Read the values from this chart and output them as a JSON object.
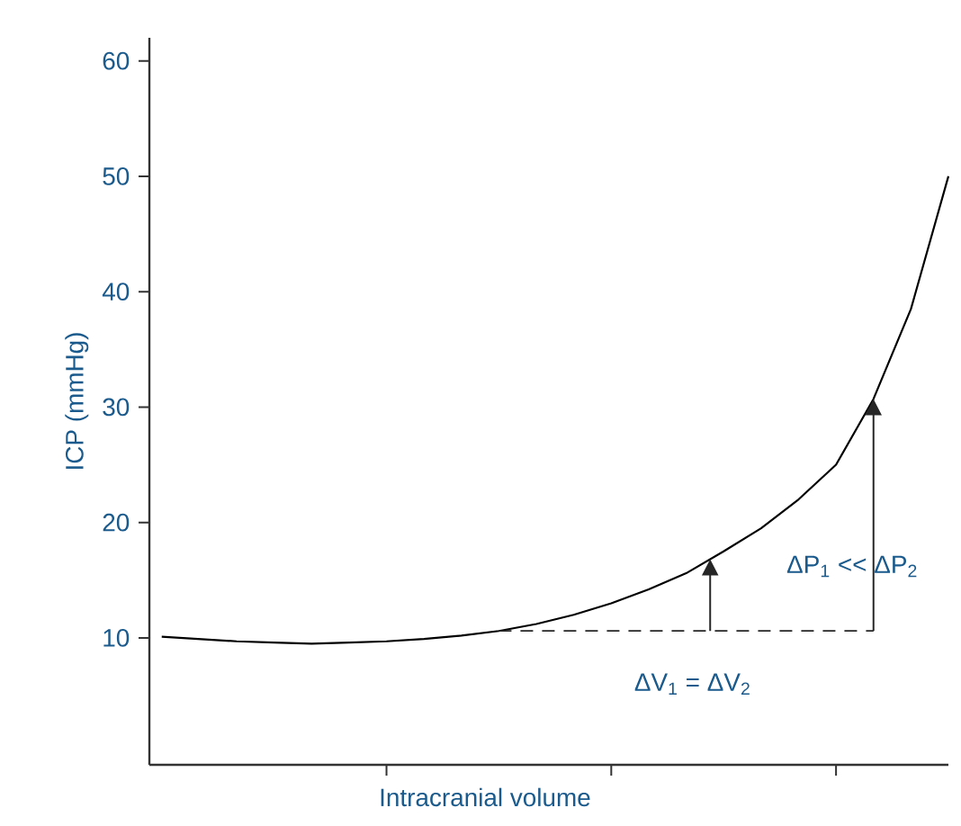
{
  "chart_data": {
    "type": "line",
    "xlabel": "Intracranial volume",
    "ylabel": "ICP (mmHg)",
    "categories": [
      null,
      null,
      null,
      null,
      null,
      null,
      null,
      null,
      null,
      null,
      null,
      null,
      null,
      null,
      null,
      null,
      null,
      null,
      null,
      null,
      null,
      null
    ],
    "series": [
      {
        "color": "#000000",
        "values": [
          10.1,
          9.9,
          9.7,
          9.6,
          9.5,
          9.6,
          9.7,
          9.9,
          10.2,
          10.6,
          11.2,
          12.0,
          13.0,
          14.2,
          15.6,
          17.5,
          19.5,
          22,
          25,
          30.7,
          38.5,
          50
        ]
      },
      {
        "color": "#262626",
        "line_style": "dashed",
        "values": [
          null,
          null,
          null,
          null,
          null,
          null,
          null,
          null,
          null,
          10.6,
          10.6,
          10.6,
          10.6,
          10.6,
          10.6,
          10.6,
          10.6,
          10.6,
          10.6,
          10.6,
          null,
          null
        ]
      }
    ],
    "ylim": [
      -1,
      62
    ],
    "yticks": [
      10,
      20,
      30,
      40,
      50,
      60
    ],
    "tick_labels": "y",
    "annotations": [
      "ΔP$_{1}$ << ΔP$_{2}$",
      "ΔV$_{1}$ = ΔV$_{2}$"
    ]
  }
}
